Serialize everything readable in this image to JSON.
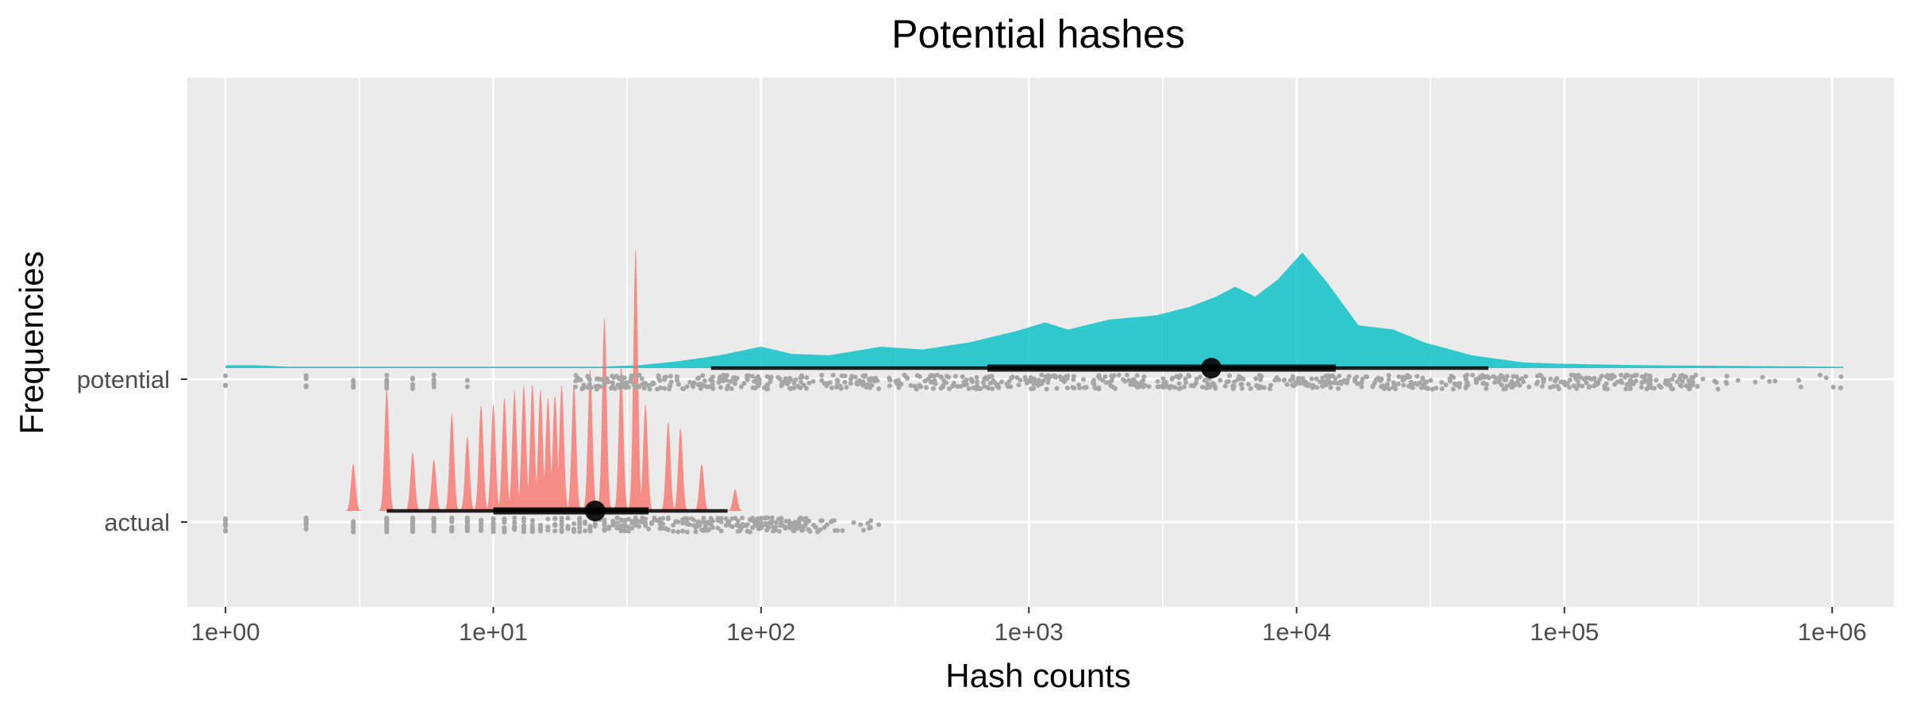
{
  "chart_data": {
    "type": "raincloud",
    "title": "Potential hashes",
    "xlabel": "Hash counts",
    "ylabel": "Frequencies",
    "x_scale": "log10",
    "xlim": [
      0.72,
      1700000
    ],
    "x_ticks": [
      {
        "value": 1,
        "label": "1e+00"
      },
      {
        "value": 10,
        "label": "1e+01"
      },
      {
        "value": 100,
        "label": "1e+02"
      },
      {
        "value": 1000,
        "label": "1e+03"
      },
      {
        "value": 10000,
        "label": "1e+04"
      },
      {
        "value": 100000,
        "label": "1e+05"
      },
      {
        "value": 1000000,
        "label": "1e+06"
      }
    ],
    "categories": [
      "actual",
      "potential"
    ],
    "grid": true,
    "legend": "none",
    "series": [
      {
        "category": "potential",
        "color": "#00BFC4",
        "density_peaks": [
          {
            "x": 1,
            "h": 0.02
          },
          {
            "x": 100,
            "h": 0.15
          },
          {
            "x": 280,
            "h": 0.15
          },
          {
            "x": 1150,
            "h": 0.32
          },
          {
            "x": 5900,
            "h": 0.57
          },
          {
            "x": 10500,
            "h": 0.81
          },
          {
            "x": 23000,
            "h": 0.27
          }
        ],
        "density_points": [
          [
            1,
            0.02
          ],
          [
            1.3,
            0.02
          ],
          [
            1.7,
            0.01
          ],
          [
            25,
            0.01
          ],
          [
            35,
            0.02
          ],
          [
            50,
            0.05
          ],
          [
            70,
            0.09
          ],
          [
            100,
            0.15
          ],
          [
            130,
            0.1
          ],
          [
            180,
            0.09
          ],
          [
            280,
            0.15
          ],
          [
            400,
            0.13
          ],
          [
            600,
            0.18
          ],
          [
            900,
            0.26
          ],
          [
            1150,
            0.32
          ],
          [
            1400,
            0.27
          ],
          [
            2000,
            0.34
          ],
          [
            3000,
            0.37
          ],
          [
            4000,
            0.43
          ],
          [
            5000,
            0.5
          ],
          [
            5900,
            0.57
          ],
          [
            7000,
            0.5
          ],
          [
            8500,
            0.62
          ],
          [
            10500,
            0.81
          ],
          [
            13000,
            0.6
          ],
          [
            17000,
            0.3
          ],
          [
            23000,
            0.27
          ],
          [
            30000,
            0.18
          ],
          [
            45000,
            0.09
          ],
          [
            70000,
            0.04
          ],
          [
            100000,
            0.03
          ],
          [
            200000,
            0.02
          ],
          [
            1100000,
            0.01
          ]
        ],
        "median": 4800,
        "inner_interval": [
          700,
          14000
        ],
        "outer_interval": [
          65,
          52000
        ],
        "points_range": [
          1,
          1150000
        ]
      },
      {
        "category": "actual",
        "color": "#F8766D",
        "density_peaks": [
          {
            "x": 3,
            "h": 0.33
          },
          {
            "x": 4,
            "h": 0.86
          },
          {
            "x": 5,
            "h": 0.41
          },
          {
            "x": 6,
            "h": 0.36
          },
          {
            "x": 7,
            "h": 0.68
          },
          {
            "x": 8,
            "h": 0.52
          },
          {
            "x": 9,
            "h": 0.74
          },
          {
            "x": 10,
            "h": 0.75
          },
          {
            "x": 11,
            "h": 0.79
          },
          {
            "x": 12,
            "h": 0.84
          },
          {
            "x": 13,
            "h": 0.88
          },
          {
            "x": 14,
            "h": 0.89
          },
          {
            "x": 15,
            "h": 0.85
          },
          {
            "x": 16,
            "h": 0.79
          },
          {
            "x": 17,
            "h": 0.81
          },
          {
            "x": 18,
            "h": 0.88
          },
          {
            "x": 20,
            "h": 0.89
          },
          {
            "x": 23,
            "h": 0.99
          },
          {
            "x": 26,
            "h": 1.35
          },
          {
            "x": 30,
            "h": 1.02
          },
          {
            "x": 34,
            "h": 1.83
          },
          {
            "x": 37,
            "h": 0.75
          },
          {
            "x": 45,
            "h": 0.62
          },
          {
            "x": 50,
            "h": 0.58
          },
          {
            "x": 60,
            "h": 0.33
          },
          {
            "x": 80,
            "h": 0.15
          }
        ],
        "median": 24,
        "inner_interval": [
          10,
          38
        ],
        "outer_interval": [
          4,
          75
        ],
        "points_range": [
          1,
          280
        ]
      }
    ]
  }
}
